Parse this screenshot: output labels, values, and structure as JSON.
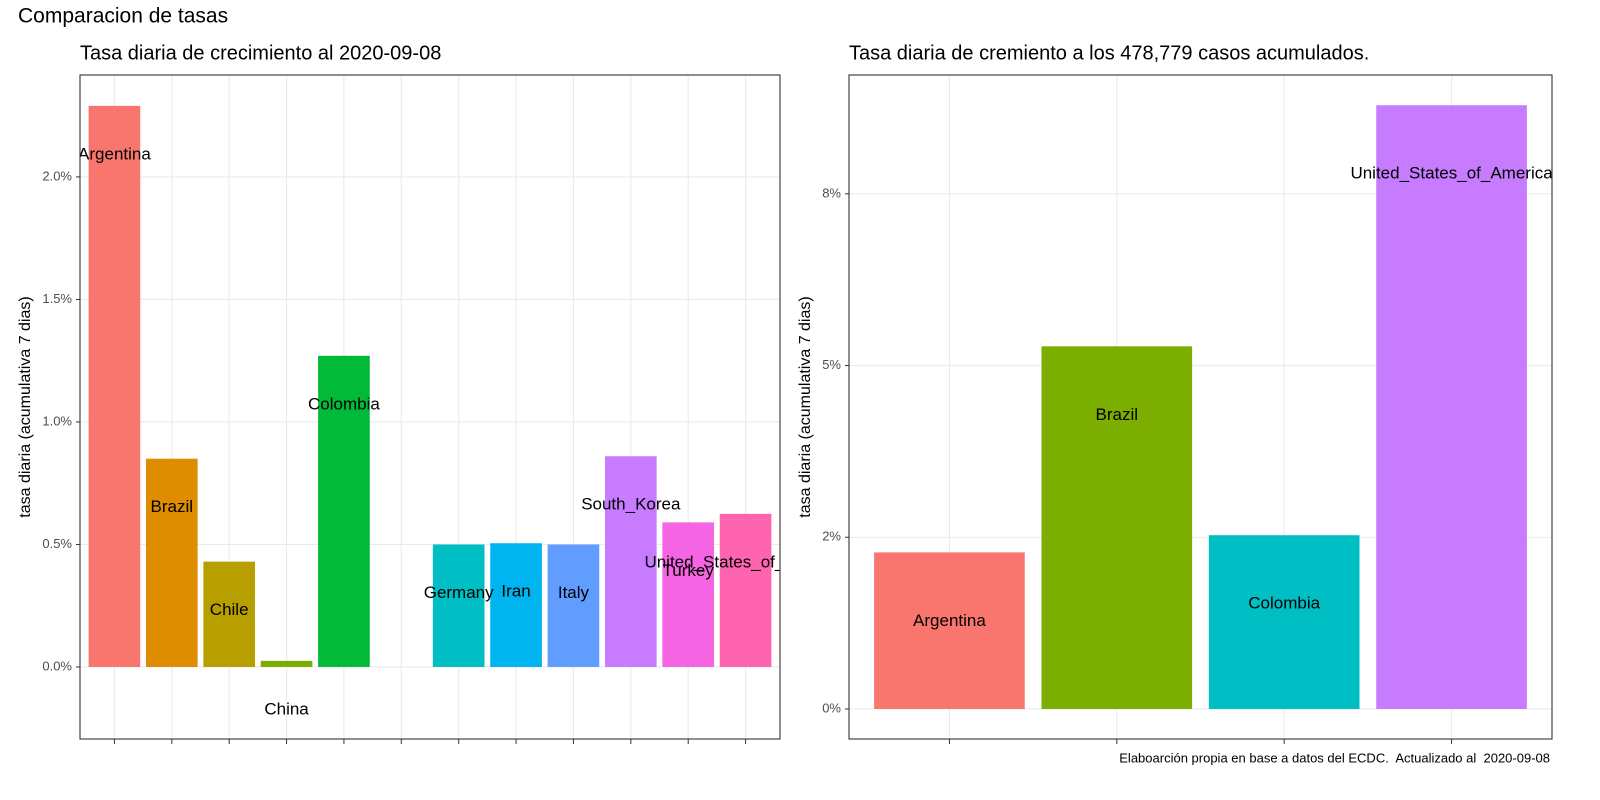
{
  "title": "Comparacion de tasas",
  "caption": "Elaboarción propia en base a datos del ECDC.  Actualizado al  2020-09-08",
  "chart_data": [
    {
      "type": "bar",
      "title": "Tasa diaria de crecimiento al 2020-09-08",
      "y_label": "tasa diaria (acumulativa 7 dias)",
      "categories": [
        "Argentina",
        "Brazil",
        "Chile",
        "China",
        "Colombia",
        null,
        "Germany",
        "Iran",
        "Italy",
        "South_Korea",
        "Turkey",
        "United_States_of_America"
      ],
      "values": [
        2.29,
        0.85,
        0.43,
        0.025,
        1.27,
        null,
        0.5,
        0.505,
        0.5,
        0.86,
        0.59,
        0.625
      ],
      "colors": [
        "#F8766D",
        "#DE8C00",
        "#B79F00",
        "#7CAE00",
        "#00BA38",
        null,
        "#00BFC4",
        "#00B4F0",
        "#619CFF",
        "#C77CFF",
        "#F564E3",
        "#FF64B0"
      ],
      "ylim": [
        -0.294,
        2.416
      ],
      "yticks": [
        {
          "value": 0,
          "label": "0.0%"
        },
        {
          "value": 0.5,
          "label": "0.5%"
        },
        {
          "value": 1,
          "label": "1.0%"
        },
        {
          "value": 1.5,
          "label": "1.5%"
        },
        {
          "value": 2,
          "label": "2.0%"
        }
      ],
      "grid": true
    },
    {
      "type": "bar",
      "title": "Tasa diaria de cremiento a los 478,779 casos acumulados.",
      "y_label": "tasa diaria (acumulativa 7 dias)",
      "categories": [
        "Argentina",
        "Brazil",
        "Colombia",
        "United_States_of_America"
      ],
      "values": [
        2.28,
        5.28,
        2.53,
        8.79
      ],
      "colors": [
        "#F8766D",
        "#7CAE00",
        "#00BFC4",
        "#C77CFF"
      ],
      "ylim": [
        -0.437,
        9.23
      ],
      "yticks": [
        {
          "value": 0,
          "label": "0%"
        },
        {
          "value": 2.5,
          "label": "2%"
        },
        {
          "value": 5,
          "label": "5%"
        },
        {
          "value": 7.5,
          "label": "8%"
        }
      ],
      "grid": true
    }
  ]
}
